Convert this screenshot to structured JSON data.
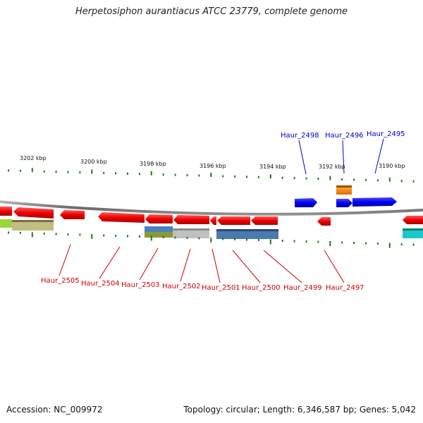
{
  "title": "Herpetosiphon aurantiacus ATCC 23779, complete genome",
  "footer": {
    "accession": "Accession: NC_009972",
    "summary": "Topology: circular; Length: 6,346,587 bp; Genes: 5,042"
  },
  "colors": {
    "upper_label": "#0000c8",
    "lower_label": "#cc0000",
    "tick": "#1a7a1a",
    "backbone": "#7a7a7a"
  },
  "kbp_labels": [
    "3202 kbp",
    "3200 kbp",
    "3198 kbp",
    "3196 kbp",
    "3194 kbp",
    "3192 kbp",
    "3190 kbp"
  ],
  "gene_labels_upper": [
    "Haur_2498",
    "Haur_2496",
    "Haur_2495"
  ],
  "gene_labels_lower": [
    "Haur_2505",
    "Haur_2504",
    "Haur_2503",
    "Haur_2502",
    "Haur_2501",
    "Haur_2500",
    "Haur_2499",
    "Haur_2497"
  ]
}
